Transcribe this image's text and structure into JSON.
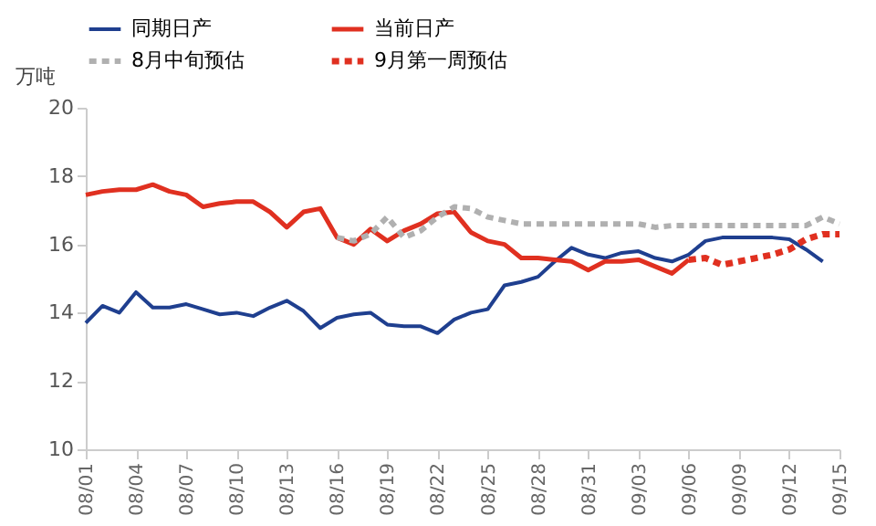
{
  "chart_data": {
    "type": "line",
    "ylabel": "万吨",
    "ylim": [
      10,
      20
    ],
    "yticks": [
      10,
      12,
      14,
      16,
      18,
      20
    ],
    "grid": false,
    "legend": "top",
    "categories": [
      "08/01",
      null,
      null,
      "08/04",
      null,
      null,
      "08/07",
      null,
      null,
      "08/10",
      null,
      null,
      "08/13",
      null,
      null,
      "08/16",
      null,
      null,
      "08/19",
      null,
      null,
      "08/22",
      null,
      null,
      "08/25",
      null,
      null,
      "08/28",
      null,
      null,
      "08/31",
      null,
      null,
      "09/03",
      null,
      null,
      "09/06",
      null,
      null,
      "09/09",
      null,
      null,
      "09/12",
      null,
      null,
      "09/15"
    ],
    "series": [
      {
        "name": "同期日产",
        "color": "#1f3f8f",
        "line_style": "solid",
        "values": [
          13.7,
          14.2,
          14.0,
          14.6,
          14.15,
          14.15,
          14.25,
          14.1,
          13.95,
          14.0,
          13.9,
          14.15,
          14.35,
          14.05,
          13.55,
          13.85,
          13.95,
          14.0,
          13.65,
          13.6,
          13.6,
          13.4,
          13.8,
          14.0,
          14.1,
          14.8,
          14.9,
          15.05,
          15.5,
          15.9,
          15.7,
          15.6,
          15.75,
          15.8,
          15.6,
          15.5,
          15.7,
          16.1,
          16.2,
          16.2,
          16.2,
          16.2,
          16.15,
          15.85,
          15.5,
          null
        ]
      },
      {
        "name": "当前日产",
        "color": "#e03020",
        "line_style": "solid",
        "values": [
          17.45,
          17.55,
          17.6,
          17.6,
          17.75,
          17.55,
          17.45,
          17.1,
          17.2,
          17.25,
          17.25,
          16.95,
          16.5,
          16.95,
          17.05,
          16.2,
          16.0,
          16.45,
          16.1,
          16.4,
          16.6,
          16.9,
          16.95,
          16.35,
          16.1,
          16.0,
          15.6,
          15.6,
          15.55,
          15.5,
          15.25,
          15.5,
          15.5,
          15.55,
          15.35,
          15.15,
          15.55,
          null,
          null,
          null,
          null,
          null,
          null,
          null,
          null,
          null
        ]
      },
      {
        "name": "8月中旬预估",
        "color": "#b0b0b0",
        "line_style": "dashed",
        "values": [
          null,
          null,
          null,
          null,
          null,
          null,
          null,
          null,
          null,
          null,
          null,
          null,
          null,
          null,
          null,
          16.2,
          16.1,
          16.3,
          16.8,
          16.2,
          16.4,
          16.8,
          17.1,
          17.05,
          16.8,
          16.7,
          16.6,
          16.6,
          16.6,
          16.6,
          16.6,
          16.6,
          16.6,
          16.6,
          16.5,
          16.55,
          16.55,
          16.55,
          16.55,
          16.55,
          16.55,
          16.55,
          16.55,
          16.55,
          16.8,
          16.6
        ]
      },
      {
        "name": "9月第一周预估",
        "color": "#e03020",
        "line_style": "dashed",
        "values": [
          null,
          null,
          null,
          null,
          null,
          null,
          null,
          null,
          null,
          null,
          null,
          null,
          null,
          null,
          null,
          null,
          null,
          null,
          null,
          null,
          null,
          null,
          null,
          null,
          null,
          null,
          null,
          null,
          null,
          null,
          null,
          null,
          null,
          null,
          null,
          null,
          15.55,
          15.6,
          15.4,
          15.5,
          15.6,
          15.7,
          15.85,
          16.15,
          16.3,
          16.3
        ]
      }
    ]
  }
}
